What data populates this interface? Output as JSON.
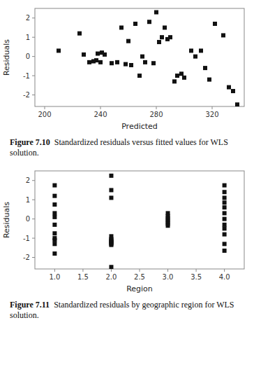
{
  "chart_data": [
    {
      "type": "scatter",
      "title": "Figure 7.10",
      "subtitle": "Standardized residuals versus fitted values for WLS solution.",
      "xlabel": "Predicted",
      "ylabel": "Residuals",
      "color": "#111111",
      "marker": "square",
      "xlim": [
        193,
        343
      ],
      "ylim": [
        -2.6,
        2.5
      ],
      "xticks": [
        200,
        240,
        280,
        320
      ],
      "yticks": [
        -2,
        -1,
        0,
        1,
        2
      ],
      "x": [
        210,
        225,
        228,
        232,
        235,
        237,
        238,
        240,
        241,
        243,
        248,
        252,
        255,
        258,
        260,
        262,
        265,
        268,
        270,
        272,
        275,
        278,
        280,
        282,
        284,
        286,
        288,
        290,
        293,
        295,
        298,
        300,
        305,
        308,
        312,
        315,
        318,
        322,
        328,
        332,
        335,
        338
      ],
      "values": [
        0.3,
        1.2,
        0.1,
        -0.3,
        -0.25,
        -0.2,
        0.15,
        -0.3,
        0.2,
        0.1,
        -0.35,
        -0.3,
        1.5,
        -0.4,
        0.8,
        -0.45,
        1.7,
        -1.0,
        0.0,
        -0.3,
        1.8,
        -0.35,
        2.3,
        0.75,
        1.0,
        1.5,
        0.9,
        1.0,
        -1.3,
        -1.0,
        -0.9,
        -1.1,
        0.3,
        0.0,
        0.3,
        -0.6,
        -1.2,
        1.7,
        1.1,
        -1.6,
        -1.8,
        -2.5
      ]
    },
    {
      "type": "scatter",
      "title": "Figure 7.11",
      "subtitle": "Standardized residuals by geographic region for WLS solution.",
      "xlabel": "Region",
      "ylabel": "Residuals",
      "color": "#111111",
      "marker": "square",
      "xlim": [
        0.65,
        4.35
      ],
      "ylim": [
        -2.6,
        2.5
      ],
      "xticks": [
        {
          "value": 1,
          "label": "1.0"
        },
        1.5,
        {
          "value": 2,
          "label": "2.0"
        },
        2.5,
        {
          "value": 3,
          "label": "3.0"
        },
        3.5,
        {
          "value": 4,
          "label": "4.0"
        }
      ],
      "yticks": [
        -2,
        -1,
        0,
        1,
        2
      ],
      "x": [
        1,
        1,
        1,
        1,
        1,
        1,
        1,
        1,
        1,
        1,
        1,
        2,
        2,
        2,
        2,
        2,
        2,
        2,
        2,
        2,
        2,
        2,
        2,
        3,
        3,
        3,
        3,
        3,
        3,
        3,
        4,
        4,
        4,
        4,
        4,
        4,
        4,
        4,
        4,
        4,
        4,
        4
      ],
      "values": [
        1.75,
        1.2,
        0.75,
        0.3,
        0.1,
        -0.3,
        -0.75,
        -1.0,
        -1.1,
        -1.3,
        -1.8,
        2.25,
        1.5,
        1.1,
        -0.9,
        -1.05,
        -1.1,
        -1.15,
        -1.2,
        -1.25,
        -1.3,
        -1.35,
        -2.5,
        0.3,
        0.15,
        0.05,
        -0.05,
        -0.15,
        -0.25,
        -0.35,
        1.75,
        1.4,
        1.1,
        0.85,
        0.6,
        0.3,
        0.0,
        -0.3,
        -0.5,
        -0.8,
        -1.3,
        -1.65
      ]
    }
  ]
}
